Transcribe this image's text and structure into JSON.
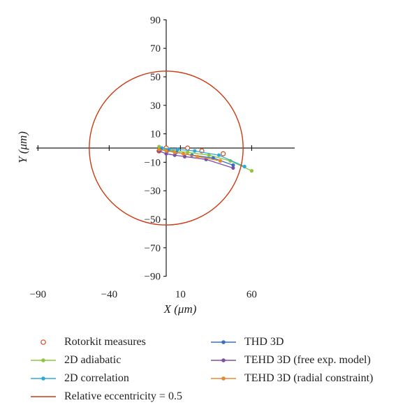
{
  "chart_data": {
    "type": "scatter",
    "xlabel": "X (μm)",
    "ylabel": "Y (μm)",
    "xlim": [
      -90,
      90
    ],
    "ylim": [
      -90,
      90
    ],
    "x_ticks": [
      -90,
      -40,
      10,
      60
    ],
    "x_tick_labels": [
      "−90",
      "−40",
      "10",
      "60"
    ],
    "y_ticks": [
      90,
      70,
      50,
      30,
      10,
      -10,
      -30,
      -50,
      -70,
      -90
    ],
    "y_tick_labels": [
      "90",
      "70",
      "50",
      "30",
      "10",
      "−10",
      "−30",
      "−50",
      "−70",
      "−90"
    ],
    "grid": false,
    "legend_position": "bottom",
    "series": [
      {
        "name": "Rotorkit measures",
        "color": "#d04a1e",
        "marker": "open-circle",
        "line": false,
        "x": [
          -5,
          0,
          15,
          25,
          40
        ],
        "y": [
          -2,
          0,
          0,
          -2,
          -4
        ]
      },
      {
        "name": "2D adiabatic",
        "color": "#8dc63f",
        "marker": "dot",
        "line": true,
        "x": [
          -5,
          0,
          5,
          15,
          30,
          45,
          60
        ],
        "y": [
          1,
          -1,
          -2,
          -3,
          -5,
          -9,
          -16
        ]
      },
      {
        "name": "2D correlation",
        "color": "#2faad8",
        "marker": "dot",
        "line": true,
        "x": [
          -3,
          2,
          8,
          20,
          37,
          55
        ],
        "y": [
          0,
          -1,
          -1,
          -2,
          -5,
          -13
        ]
      },
      {
        "name": "THD 3D",
        "color": "#3a6fc4",
        "marker": "dot",
        "line": true,
        "x": [
          -4,
          1,
          7,
          18,
          33,
          47
        ],
        "y": [
          -1,
          -2,
          -3,
          -5,
          -7,
          -12
        ]
      },
      {
        "name": "TEHD 3D (free exp. model)",
        "color": "#7b4fa5",
        "marker": "dot",
        "line": true,
        "x": [
          -5,
          0,
          6,
          13,
          28,
          47
        ],
        "y": [
          -2,
          -4,
          -5,
          -6,
          -8,
          -14
        ]
      },
      {
        "name": "TEHD 3D (radial constraint)",
        "color": "#e58a2e",
        "marker": "dot",
        "line": true,
        "x": [
          -5,
          0,
          6,
          12,
          22,
          38
        ],
        "y": [
          -1,
          -2,
          -3,
          -4,
          -6,
          -9
        ]
      },
      {
        "name": "Relative eccentricity = 0.5",
        "color": "#cc3a12",
        "marker": "none",
        "line": true,
        "shape": "circle",
        "center": [
          0,
          0
        ],
        "radius": 54
      }
    ]
  }
}
